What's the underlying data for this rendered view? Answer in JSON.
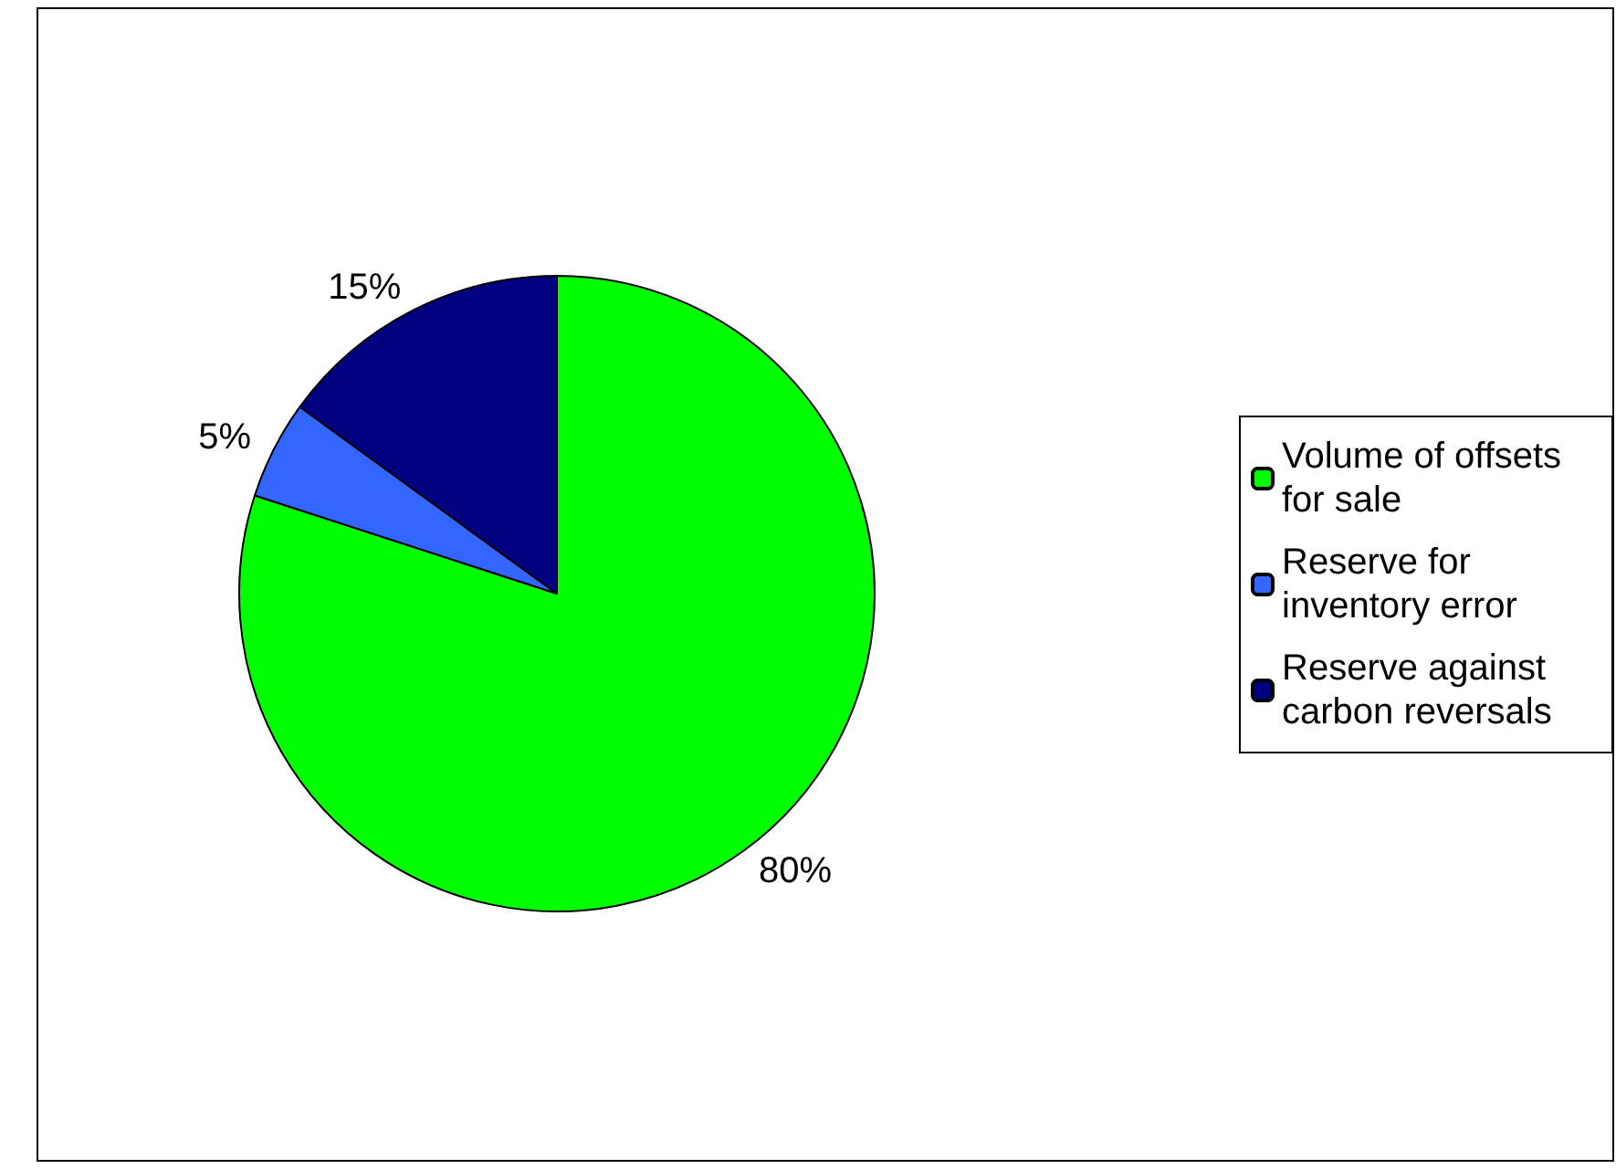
{
  "chart_data": {
    "type": "pie",
    "categories": [
      "Volume of offsets for sale",
      "Reserve for inventory error",
      "Reserve against carbon reversals"
    ],
    "values": [
      80,
      5,
      15
    ],
    "colors": [
      "#00ff00",
      "#3366ff",
      "#000080"
    ],
    "value_labels": [
      "80%",
      "5%",
      "15%"
    ],
    "legend": "right"
  }
}
